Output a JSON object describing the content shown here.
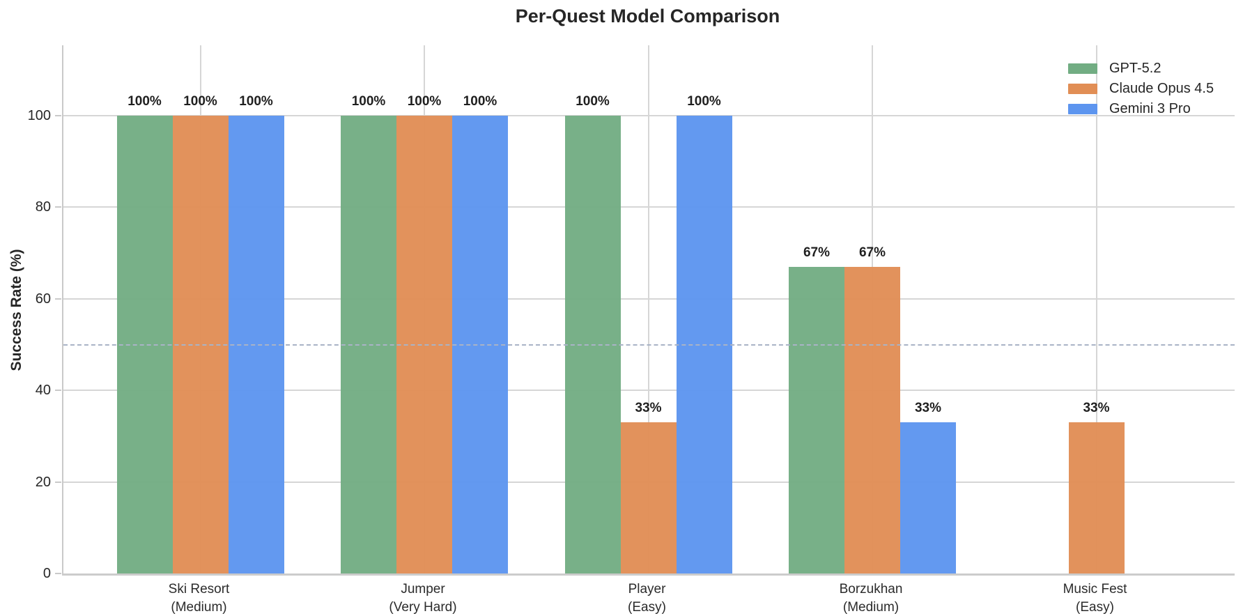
{
  "title": "Per-Quest Model Comparison",
  "chart_data": {
    "type": "bar",
    "title": "Per-Quest Model Comparison",
    "ylabel": "Success Rate (%)",
    "xlabel": "",
    "ylim": [
      0,
      115
    ],
    "yticks": [
      0,
      20,
      40,
      60,
      80,
      100
    ],
    "grid": true,
    "legend_position": "upper right",
    "value_label_suffix": "%",
    "reference_line": {
      "value": 50,
      "style": "dashed",
      "color": "#a9b3c6"
    },
    "categories": [
      {
        "label": "Ski Resort",
        "sub": "(Medium)"
      },
      {
        "label": "Jumper",
        "sub": "(Very Hard)"
      },
      {
        "label": "Player",
        "sub": "(Easy)"
      },
      {
        "label": "Borzukhan",
        "sub": "(Medium)"
      },
      {
        "label": "Music Fest",
        "sub": "(Easy)"
      }
    ],
    "series": [
      {
        "name": "GPT-5.2",
        "color": "#72ad83",
        "values": [
          100,
          100,
          100,
          67,
          0
        ]
      },
      {
        "name": "Claude Opus 4.5",
        "color": "#e18e55",
        "values": [
          100,
          100,
          33,
          67,
          33
        ]
      },
      {
        "name": "Gemini 3 Pro",
        "color": "#5d95ef",
        "values": [
          100,
          100,
          100,
          33,
          0
        ]
      }
    ],
    "colors": {
      "grid": "#d6d6d6",
      "spine": "#c9c9c9",
      "reference_dash": "#a9b3c6",
      "text": "#262626"
    }
  }
}
